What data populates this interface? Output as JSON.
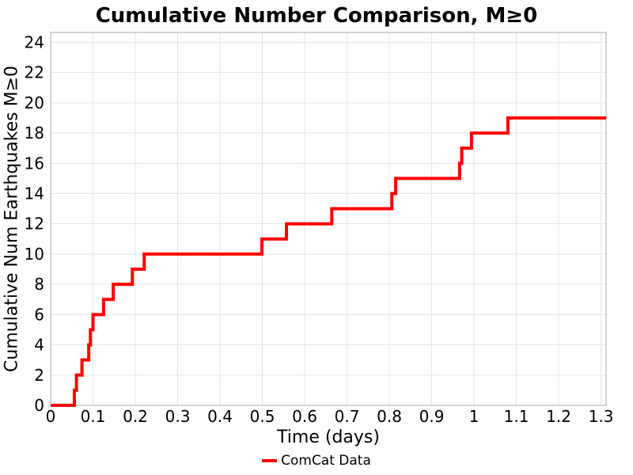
{
  "title": "Cumulative Number Comparison, M≥0",
  "chart_data": {
    "type": "line",
    "subtype": "step-post",
    "title": "Cumulative Number Comparison, M≥0",
    "xlabel": "Time (days)",
    "ylabel": "Cumulative Num Earthquakes M≥0",
    "grid": true,
    "legend_position": "bottom-center",
    "xlim": [
      0,
      1.312
    ],
    "ylim": [
      0,
      24.65
    ],
    "xticks": [
      0,
      0.1,
      0.2,
      0.3,
      0.4,
      0.5,
      0.6,
      0.7,
      0.8,
      0.9,
      1,
      1.1,
      1.2,
      1.3
    ],
    "xtick_labels": [
      "0",
      "0.1",
      "0.2",
      "0.3",
      "0.4",
      "0.5",
      "0.6",
      "0.7",
      "0.8",
      "0.9",
      "1",
      "1.1",
      "1.2",
      "1.3"
    ],
    "yticks": [
      0,
      2,
      4,
      6,
      8,
      10,
      12,
      14,
      16,
      18,
      20,
      22,
      24
    ],
    "ytick_labels": [
      "0",
      "2",
      "4",
      "6",
      "8",
      "10",
      "12",
      "14",
      "16",
      "18",
      "20",
      "22",
      "24"
    ],
    "series": [
      {
        "name": "ComCat Data",
        "color": "#ff0000",
        "line_width": 4,
        "step_mode": "post",
        "start": [
          0,
          0
        ],
        "points": [
          [
            0.056,
            1
          ],
          [
            0.061,
            2
          ],
          [
            0.074,
            3
          ],
          [
            0.09,
            4
          ],
          [
            0.094,
            5
          ],
          [
            0.1,
            6
          ],
          [
            0.125,
            7
          ],
          [
            0.148,
            8
          ],
          [
            0.193,
            9
          ],
          [
            0.221,
            10
          ],
          [
            0.499,
            11
          ],
          [
            0.557,
            12
          ],
          [
            0.664,
            13
          ],
          [
            0.806,
            14
          ],
          [
            0.815,
            15
          ],
          [
            0.966,
            16
          ],
          [
            0.971,
            17
          ],
          [
            0.994,
            18
          ],
          [
            1.08,
            19
          ]
        ],
        "end_time": 1.312,
        "final_value": 19
      }
    ],
    "legend": [
      {
        "label": "ComCat Data",
        "color": "#ff0000"
      }
    ],
    "colors": {
      "series_red": "#ff0000",
      "grid": "#e5e5e5",
      "spine": "#a8a8a8",
      "background": "#ffffff",
      "text": "#000000"
    }
  }
}
